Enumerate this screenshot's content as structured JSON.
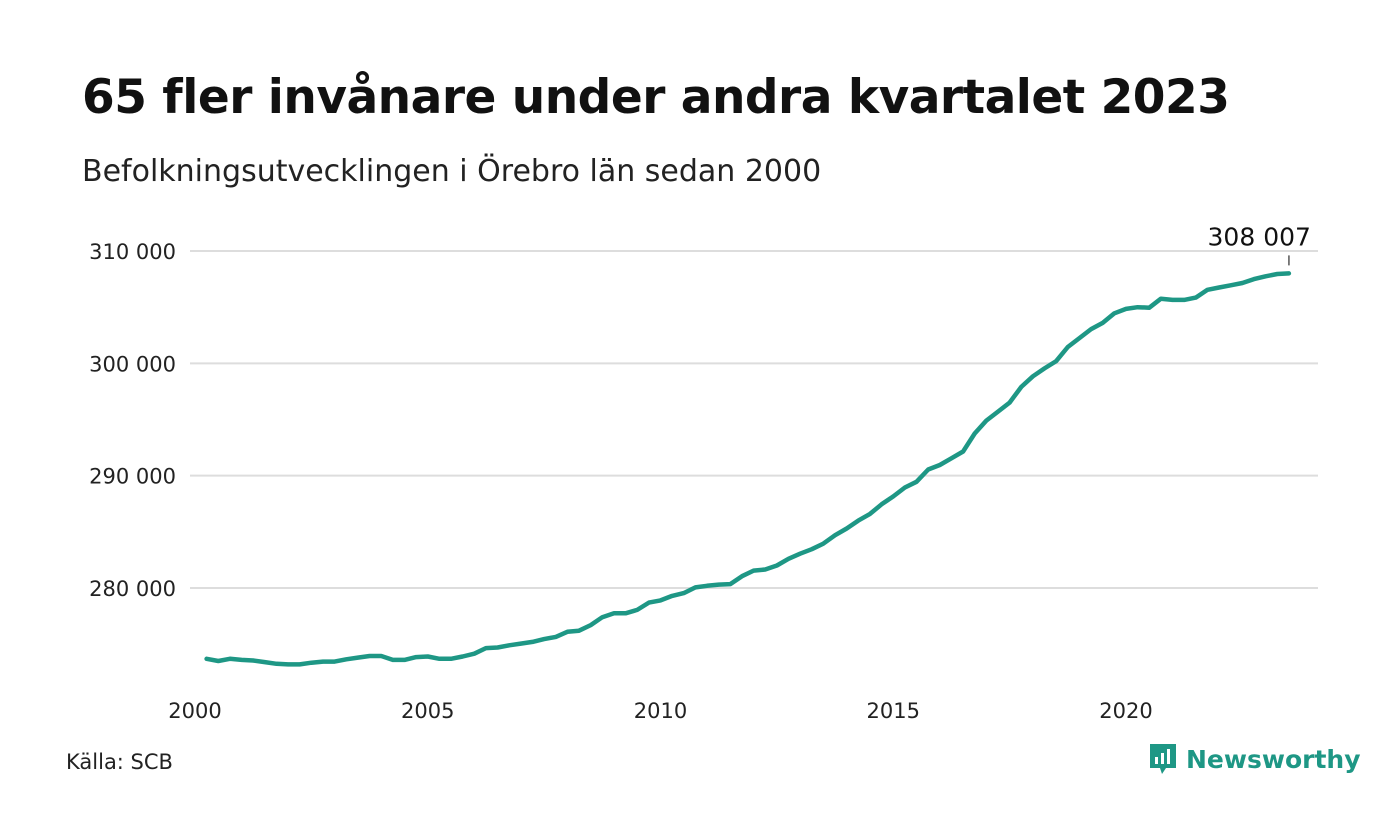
{
  "brand_color": "#1e9785",
  "title": "65 fler invånare under andra kvartalet 2023",
  "subtitle": "Befolkningsutvecklingen i Örebro län sedan 2000",
  "source": "Källa: SCB",
  "brand": {
    "name": "Newsworthy",
    "icon": "newsworthy-logo-icon"
  },
  "chart_data": {
    "type": "line",
    "title": "65 fler invånare under andra kvartalet 2023",
    "subtitle": "Befolkningsutvecklingen i Örebro län sedan 2000",
    "xlabel": "",
    "ylabel": "",
    "xlim": [
      2000,
      2024.5
    ],
    "ylim": [
      272000,
      312000
    ],
    "x_ticks": [
      "2000",
      "2005",
      "2010",
      "2015",
      "2020"
    ],
    "y_ticks": [
      "280 000",
      "290 000",
      "300 000",
      "310 000"
    ],
    "grid": "horizontal",
    "legend": "none",
    "end_label": "308 007",
    "series": [
      {
        "color": "#1e9785",
        "x": [
          2000.25,
          2000.5,
          2000.75,
          2001.0,
          2001.25,
          2001.5,
          2001.75,
          2002.0,
          2002.25,
          2002.5,
          2002.75,
          2003.0,
          2003.25,
          2003.5,
          2003.75,
          2004.0,
          2004.25,
          2004.5,
          2004.75,
          2005.0,
          2005.25,
          2005.5,
          2005.75,
          2006.0,
          2006.25,
          2006.5,
          2006.75,
          2007.0,
          2007.25,
          2007.5,
          2007.75,
          2008.0,
          2008.25,
          2008.5,
          2008.75,
          2009.0,
          2009.25,
          2009.5,
          2009.75,
          2010.0,
          2010.25,
          2010.5,
          2010.75,
          2011.0,
          2011.25,
          2011.5,
          2011.75,
          2012.0,
          2012.25,
          2012.5,
          2012.75,
          2013.0,
          2013.25,
          2013.5,
          2013.75,
          2014.0,
          2014.25,
          2014.5,
          2014.75,
          2015.0,
          2015.25,
          2015.5,
          2015.75,
          2016.0,
          2016.25,
          2016.5,
          2016.75,
          2017.0,
          2017.25,
          2017.5,
          2017.75,
          2018.0,
          2018.25,
          2018.5,
          2018.75,
          2019.0,
          2019.25,
          2019.5,
          2019.75,
          2020.0,
          2020.25,
          2020.5,
          2020.75,
          2021.0,
          2021.25,
          2021.5,
          2021.75,
          2022.0,
          2022.25,
          2022.5,
          2022.75,
          2023.0,
          2023.25,
          2023.5
        ],
        "y": [
          273700,
          273500,
          273700,
          273600,
          273550,
          273400,
          273250,
          273200,
          273200,
          273350,
          273450,
          273450,
          273650,
          273800,
          273950,
          273950,
          273600,
          273600,
          273850,
          273900,
          273700,
          273700,
          273900,
          274150,
          274650,
          274700,
          274900,
          275050,
          275200,
          275450,
          275650,
          276100,
          276200,
          276700,
          277400,
          277750,
          277750,
          278050,
          278700,
          278900,
          279300,
          279550,
          280050,
          280200,
          280300,
          280350,
          281050,
          281550,
          281650,
          282000,
          282600,
          283050,
          283450,
          283950,
          284700,
          285300,
          286000,
          286600,
          287450,
          288150,
          288950,
          289450,
          290550,
          290950,
          291550,
          292150,
          293750,
          294900,
          295700,
          296500,
          297900,
          298850,
          299550,
          300200,
          301450,
          302250,
          303050,
          303600,
          304450,
          304850,
          305000,
          304950,
          305750,
          305650,
          305650,
          305850,
          306550,
          306750,
          306950,
          307150,
          307500,
          307750,
          307950,
          308007
        ]
      }
    ]
  }
}
